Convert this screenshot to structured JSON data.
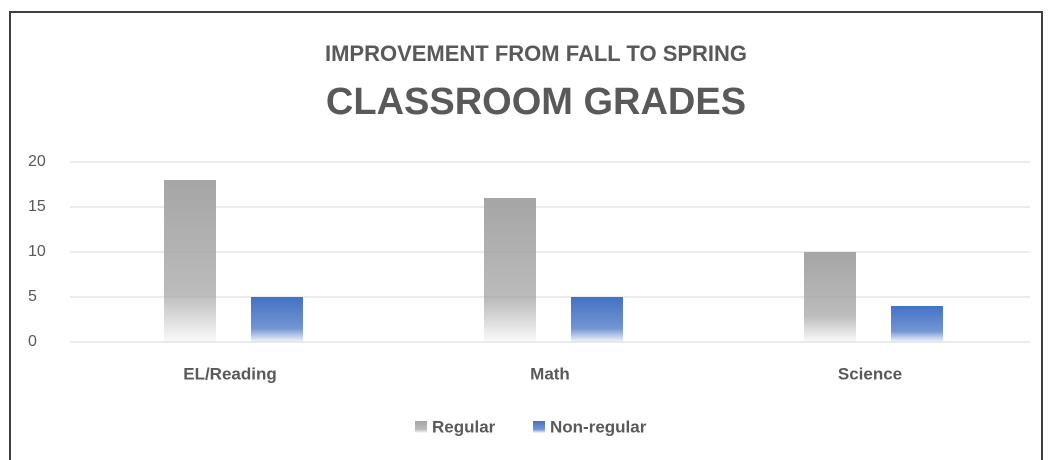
{
  "chart_data": {
    "type": "bar",
    "subtitle": "IMPROVEMENT FROM FALL TO SPRING",
    "title": "CLASSROOM GRADES",
    "categories": [
      "EL/Reading",
      "Math",
      "Science"
    ],
    "series": [
      {
        "name": "Regular",
        "color": "#a5a5a5",
        "values": [
          18,
          16,
          10
        ]
      },
      {
        "name": "Non-regular",
        "color": "#4472c4",
        "values": [
          5,
          5,
          4
        ]
      }
    ],
    "ylim": [
      0,
      20
    ],
    "yticks": [
      0,
      5,
      10,
      15,
      20
    ],
    "grid": true,
    "legend": "bottom"
  }
}
